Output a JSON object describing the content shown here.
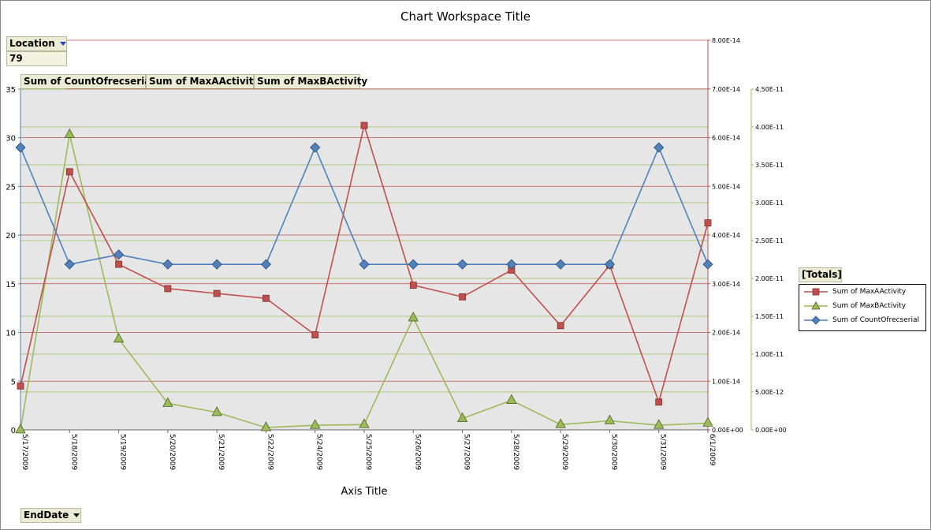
{
  "title": "Chart Workspace Title",
  "filter": {
    "field": "Location",
    "value": "79"
  },
  "data_fields": [
    "Sum of CountOfrecserial",
    "Sum of MaxAActivity",
    "Sum of MaxBActivity"
  ],
  "category_field": "EndDate",
  "legend_title": "[Totals]",
  "colors": {
    "maxA": "#c0504d",
    "maxB": "#9bbb59",
    "count": "#4f81bd",
    "plot_bg": "#e6e6e6"
  },
  "chart_data": {
    "type": "line",
    "title": "Chart Workspace Title",
    "xlabel": "Axis Title",
    "categories": [
      "5/17/2009",
      "5/18/2009",
      "5/19/2009",
      "5/20/2009",
      "5/21/2009",
      "5/22/2009",
      "5/24/2009",
      "5/25/2009",
      "5/26/2009",
      "5/27/2009",
      "5/28/2009",
      "5/29/2009",
      "5/30/2009",
      "5/31/2009",
      "6/1/2009"
    ],
    "axes": {
      "primary_y": {
        "ylim": [
          0,
          35
        ],
        "ticks": [
          "0",
          "5",
          "10",
          "15",
          "20",
          "25",
          "30",
          "35"
        ]
      },
      "secondary_y": {
        "ylim": [
          0,
          8e-14
        ],
        "ticks": [
          "0.00E+00",
          "1.00E-14",
          "2.00E-14",
          "3.00E-14",
          "4.00E-14",
          "5.00E-14",
          "6.00E-14",
          "7.00E-14",
          "8.00E-14"
        ]
      },
      "tertiary_y": {
        "ylim": [
          0,
          4.5e-11
        ],
        "ticks": [
          "0.00E+00",
          "5.00E-12",
          "1.00E-11",
          "1.50E-11",
          "2.00E-11",
          "2.50E-11",
          "3.00E-11",
          "3.50E-11",
          "4.00E-11",
          "4.50E-11"
        ]
      }
    },
    "series": [
      {
        "name": "Sum of MaxAActivity",
        "axis": "secondary_y",
        "marker": "square",
        "color": "#c0504d",
        "values": [
          9e-15,
          5.3e-14,
          3.4e-14,
          2.9e-14,
          2.8e-14,
          2.7e-14,
          1.95e-14,
          6.25e-14,
          2.97e-14,
          2.73e-14,
          3.28e-14,
          2.14e-14,
          3.38e-14,
          5.7e-15,
          4.25e-14
        ]
      },
      {
        "name": "Sum of MaxBActivity",
        "axis": "tertiary_y",
        "marker": "triangle",
        "color": "#9bbb59",
        "values": [
          0.0,
          3.9e-11,
          1.2e-11,
          3.5e-12,
          2.3e-12,
          3e-13,
          6e-13,
          7e-13,
          1.48e-11,
          1.5e-12,
          3.9e-12,
          7e-13,
          1.2e-12,
          6e-13,
          9e-13
        ]
      },
      {
        "name": "Sum of CountOfrecserial",
        "axis": "primary_y",
        "marker": "diamond",
        "color": "#4f81bd",
        "values": [
          29,
          17,
          18,
          17,
          17,
          17,
          29,
          17,
          17,
          17,
          17,
          17,
          17,
          29,
          17
        ]
      }
    ],
    "legend": [
      "Sum of MaxAActivity",
      "Sum of MaxBActivity",
      "Sum of CountOfrecserial"
    ],
    "grid": true,
    "legend_position": "right"
  }
}
